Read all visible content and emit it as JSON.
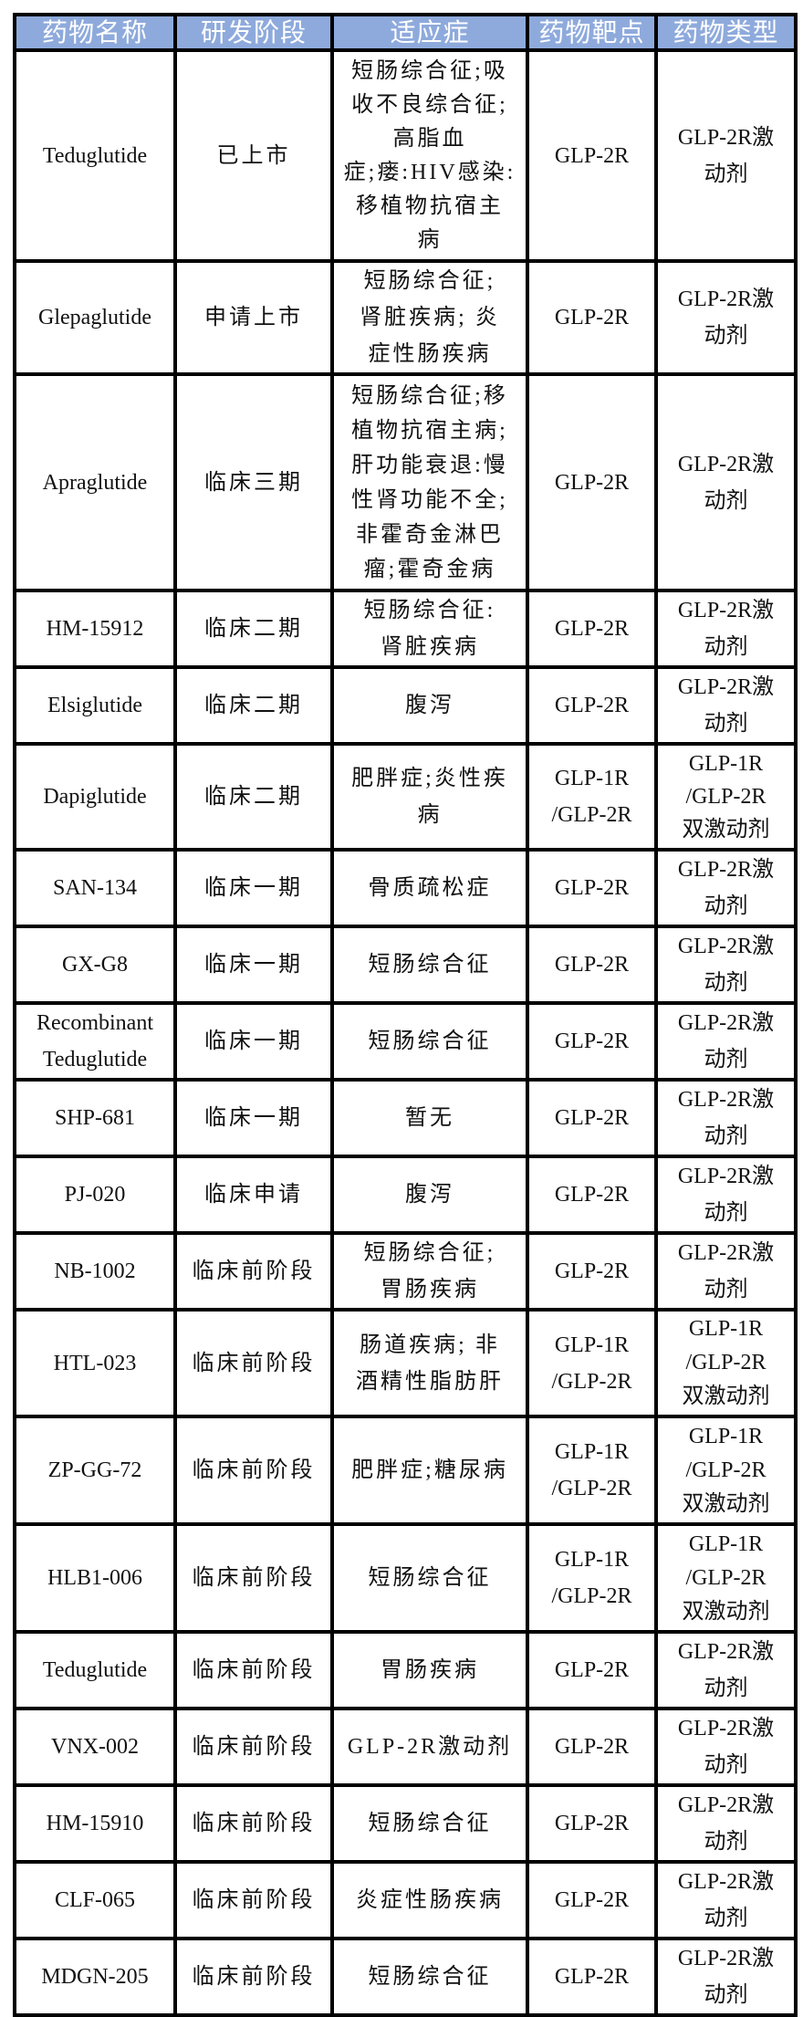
{
  "headers": [
    "药物名称",
    "研发阶段",
    "适应症",
    "药物靶点",
    "药物类型"
  ],
  "header_bg": "#8eaadc",
  "rows": [
    [
      "Teduglutide",
      "已上市",
      "短肠综合征;吸\n收不良综合征;\n高脂血\n症;瘘:HIV感染:\n移植物抗宿主\n病",
      "GLP-2R",
      "GLP-2R激\n动剂"
    ],
    [
      "Glepaglutide",
      "申请上市",
      "短肠综合征;\n肾脏疾病; 炎\n症性肠疾病",
      "GLP-2R",
      "GLP-2R激\n动剂"
    ],
    [
      "Apraglutide",
      "临床三期",
      "短肠综合征;移\n植物抗宿主病;\n肝功能衰退:慢\n性肾功能不全;\n非霍奇金淋巴\n瘤;霍奇金病",
      "GLP-2R",
      "GLP-2R激\n动剂"
    ],
    [
      "HM-15912",
      "临床二期",
      "短肠综合征:\n肾脏疾病",
      "GLP-2R",
      "GLP-2R激\n动剂"
    ],
    [
      "Elsiglutide",
      "临床二期",
      "腹泻",
      "GLP-2R",
      "GLP-2R激\n动剂"
    ],
    [
      "Dapiglutide",
      "临床二期",
      "肥胖症;炎性疾\n病",
      "GLP-1R\n/GLP-2R",
      "GLP-1R\n/GLP-2R\n双激动剂"
    ],
    [
      "SAN-134",
      "临床一期",
      "骨质疏松症",
      "GLP-2R",
      "GLP-2R激\n动剂"
    ],
    [
      "GX-G8",
      "临床一期",
      "短肠综合征",
      "GLP-2R",
      "GLP-2R激\n动剂"
    ],
    [
      "Recombinant\nTeduglutide",
      "临床一期",
      "短肠综合征",
      "GLP-2R",
      "GLP-2R激\n动剂"
    ],
    [
      "SHP-681",
      "临床一期",
      "暂无",
      "GLP-2R",
      "GLP-2R激\n动剂"
    ],
    [
      "PJ-020",
      "临床申请",
      "腹泻",
      "GLP-2R",
      "GLP-2R激\n动剂"
    ],
    [
      "NB-1002",
      "临床前阶段",
      "短肠综合征;\n胃肠疾病",
      "GLP-2R",
      "GLP-2R激\n动剂"
    ],
    [
      "HTL-023",
      "临床前阶段",
      "肠道疾病; 非\n酒精性脂肪肝",
      "GLP-1R\n/GLP-2R",
      "GLP-1R\n/GLP-2R\n双激动剂"
    ],
    [
      "ZP-GG-72",
      "临床前阶段",
      "肥胖症;糖尿病",
      "GLP-1R\n/GLP-2R",
      "GLP-1R\n/GLP-2R\n双激动剂"
    ],
    [
      "HLB1-006",
      "临床前阶段",
      "短肠综合征",
      "GLP-1R\n/GLP-2R",
      "GLP-1R\n/GLP-2R\n双激动剂"
    ],
    [
      "Teduglutide",
      "临床前阶段",
      "胃肠疾病",
      "GLP-2R",
      "GLP-2R激\n动剂"
    ],
    [
      "VNX-002",
      "临床前阶段",
      "GLP-2R激动剂",
      "GLP-2R",
      "GLP-2R激\n动剂"
    ],
    [
      "HM-15910",
      "临床前阶段",
      "短肠综合征",
      "GLP-2R",
      "GLP-2R激\n动剂"
    ],
    [
      "CLF-065",
      "临床前阶段",
      "炎症性肠疾病",
      "GLP-2R",
      "GLP-2R激\n动剂"
    ],
    [
      "MDGN-205",
      "临床前阶段",
      "短肠综合征",
      "GLP-2R",
      "GLP-2R激\n动剂"
    ]
  ]
}
